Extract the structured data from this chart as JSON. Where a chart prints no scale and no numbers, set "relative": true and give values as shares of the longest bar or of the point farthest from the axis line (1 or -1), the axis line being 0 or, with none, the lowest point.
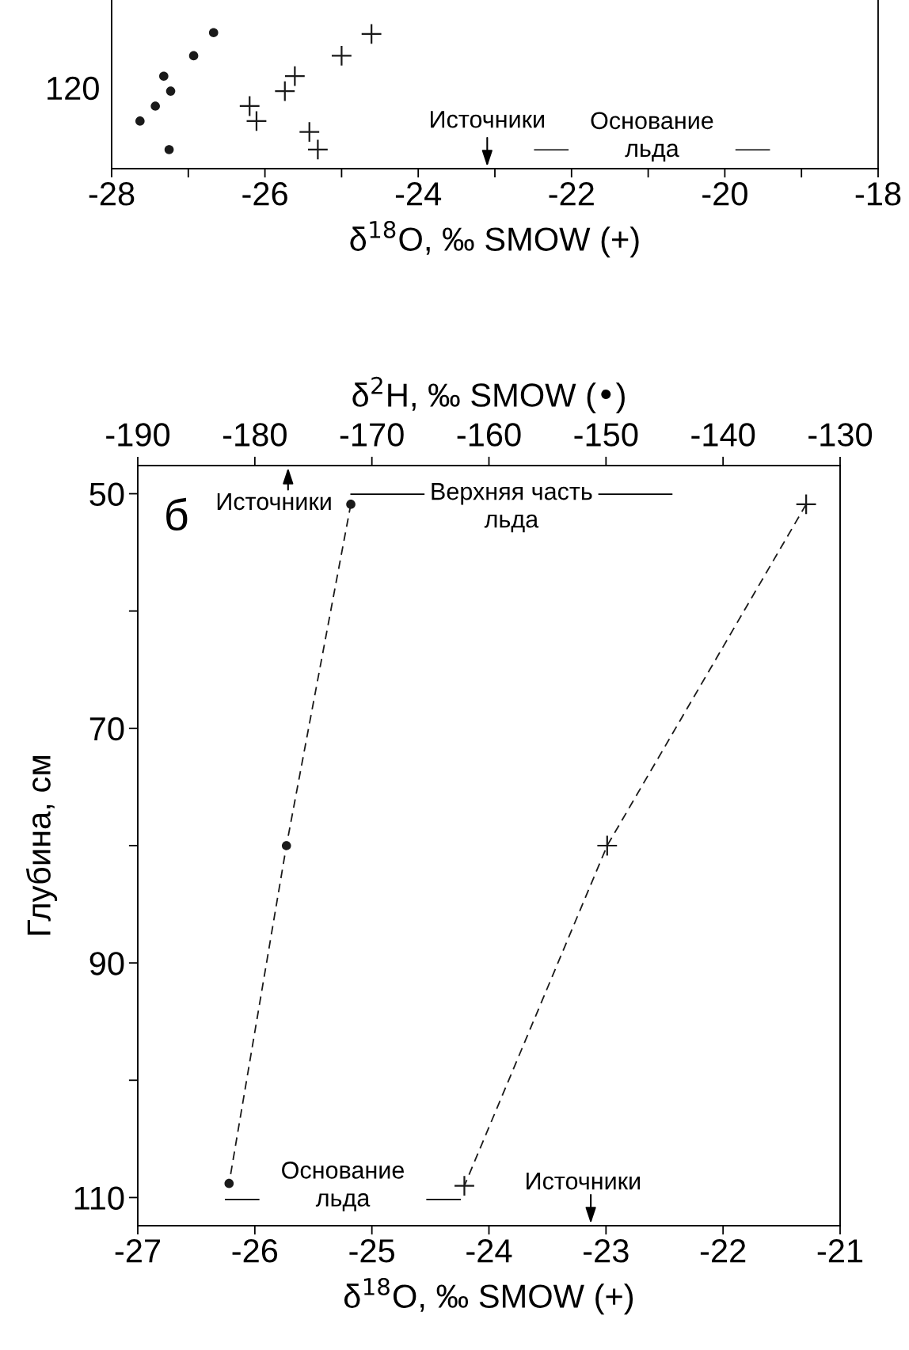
{
  "chart_data": [
    {
      "type": "scatter",
      "relative": true,
      "xlabel": "δ$^{18}$O, ‰ SMOW (+)",
      "xlim": [
        -28,
        -18
      ],
      "xticks": [
        -28,
        {
          "value": -27,
          "label": null
        },
        -26,
        {
          "value": -25,
          "label": null
        },
        -24,
        {
          "value": -23,
          "label": null
        },
        -22,
        {
          "value": -21,
          "label": null
        },
        -20,
        {
          "value": -19,
          "label": null
        },
        -18
      ],
      "series": [
        {
          "marker": "cross",
          "color": "#1a1a1a",
          "x": [
            -24.61,
            -25.0,
            -25.61,
            -25.74,
            -26.2,
            -26.11,
            -25.42,
            -25.31
          ],
          "values": [
            0.99,
            0.83,
            0.68,
            0.57,
            0.46,
            0.35,
            0.27,
            0.14
          ]
        },
        {
          "marker": "circle",
          "color": "#1a1a1a",
          "x": [
            -26.67,
            -26.93,
            -27.32,
            -27.23,
            -27.43,
            -27.63,
            -27.25
          ],
          "values": [
            1.0,
            0.83,
            0.68,
            0.57,
            0.46,
            0.35,
            0.14
          ]
        }
      ],
      "annotations": [
        "120",
        "Источники",
        "Основание\nльда"
      ]
    },
    {
      "type": "line",
      "x2label": "δ$^{2}$H, ‰ SMOW (•)",
      "xlabel": "δ$^{18}$O, ‰ SMOW (+)",
      "ylabel": "Глубина, см",
      "xlim": [
        -27,
        -21
      ],
      "xticks": [
        -27,
        -26,
        -25,
        -24,
        -23,
        -22,
        -21
      ],
      "x2lim": [
        -190,
        -130
      ],
      "x2ticks": [
        -190,
        -180,
        -170,
        -160,
        -150,
        -140,
        -130
      ],
      "ylim": [
        112.4,
        47.6
      ],
      "yticks": [
        50,
        {
          "value": 60,
          "label": null
        },
        70,
        {
          "value": 80,
          "label": null
        },
        90,
        {
          "value": 100,
          "label": null
        },
        110
      ],
      "series": [
        {
          "marker": "circle",
          "line_style": "dashed",
          "axis": "x2",
          "color": "#1a1a1a",
          "x": [
            -171.8,
            -177.3,
            -182.2
          ],
          "values": [
            50.9,
            80.0,
            108.8
          ]
        },
        {
          "marker": "cross",
          "line_style": "dashed",
          "color": "#1a1a1a",
          "x": [
            -21.29,
            -22.99,
            -24.21
          ],
          "values": [
            50.9,
            80.0,
            109.0
          ]
        }
      ],
      "annotations": [
        "б",
        "Источники",
        "Верхняя часть\nльда",
        "Основание\nльда",
        "Источники"
      ]
    }
  ]
}
